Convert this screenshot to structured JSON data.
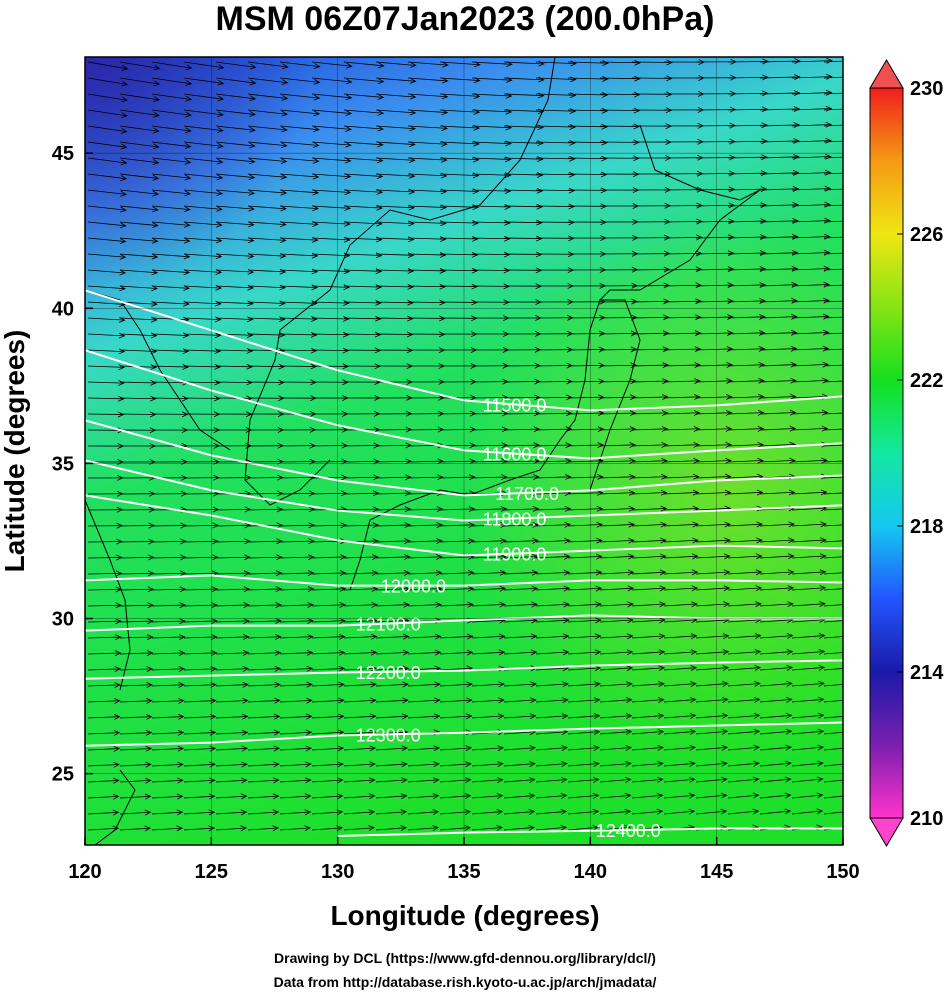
{
  "chart_data": {
    "type": "map",
    "title": "MSM 06Z07Jan2023 (200.0hPa)",
    "x_label": "Longitude (degrees)",
    "y_label": "Latitude  (degrees)",
    "xlim": [
      120,
      150
    ],
    "ylim": [
      22.7,
      48.1
    ],
    "xticks": [
      120,
      125,
      130,
      135,
      140,
      145,
      150
    ],
    "yticks": [
      25,
      30,
      35,
      40,
      45
    ],
    "grid": true,
    "contour_lon": [
      120,
      125,
      130,
      135,
      140,
      145,
      150
    ],
    "contours": [
      {
        "value": 11500,
        "label": "11500.0",
        "lat": [
          40.58,
          39.29,
          38.0,
          37.03,
          36.71,
          36.87,
          37.16
        ]
      },
      {
        "value": 11600,
        "label": "11600.0",
        "lat": [
          38.65,
          37.35,
          36.23,
          35.42,
          35.16,
          35.42,
          35.65
        ]
      },
      {
        "value": 11700,
        "label": "11700.0",
        "lat": [
          36.39,
          35.26,
          34.45,
          33.97,
          34.13,
          34.45,
          34.61
        ]
      },
      {
        "value": 11800,
        "label": "11800.0",
        "lat": [
          35.1,
          34.13,
          33.48,
          33.16,
          33.32,
          33.48,
          33.65
        ]
      },
      {
        "value": 11900,
        "label": "11900.0",
        "lat": [
          33.97,
          33.32,
          32.52,
          32.03,
          32.19,
          32.35,
          32.26
        ]
      },
      {
        "value": 12000,
        "label": "12000.0",
        "lat": [
          31.23,
          31.39,
          31.06,
          31.06,
          31.23,
          31.23,
          31.16
        ]
      },
      {
        "value": 12100,
        "label": "12100.0",
        "lat": [
          29.61,
          29.77,
          29.77,
          29.94,
          30.1,
          30.0,
          30.0
        ]
      },
      {
        "value": 12200,
        "label": "12200.0",
        "lat": [
          28.06,
          28.16,
          28.26,
          28.32,
          28.48,
          28.58,
          28.65
        ]
      },
      {
        "value": 12300,
        "label": "12300.0",
        "lat": [
          25.9,
          26.0,
          26.23,
          26.32,
          26.45,
          26.55,
          26.65
        ]
      },
      {
        "value": 12400,
        "label": "12400.0",
        "lat": [
          null,
          null,
          22.99,
          23.1,
          23.16,
          23.23,
          23.23
        ]
      }
    ],
    "colorbar": {
      "clim": [
        210,
        230
      ],
      "ticks": [
        210,
        214,
        218,
        222,
        226,
        230
      ],
      "colors": [
        "#ff33cc",
        "#7a1fb0",
        "#1a1aa8",
        "#2255ff",
        "#14c8f0",
        "#14e8a0",
        "#14e01e",
        "#86e414",
        "#f0e614",
        "#f59a14",
        "#f01e1e"
      ]
    },
    "credits": [
      "Drawing by DCL (https://www.gfd-dennou.org/library/dcl/)",
      "Data from http://database.rish.kyoto-u.ac.jp/arch/jmadata/"
    ]
  }
}
